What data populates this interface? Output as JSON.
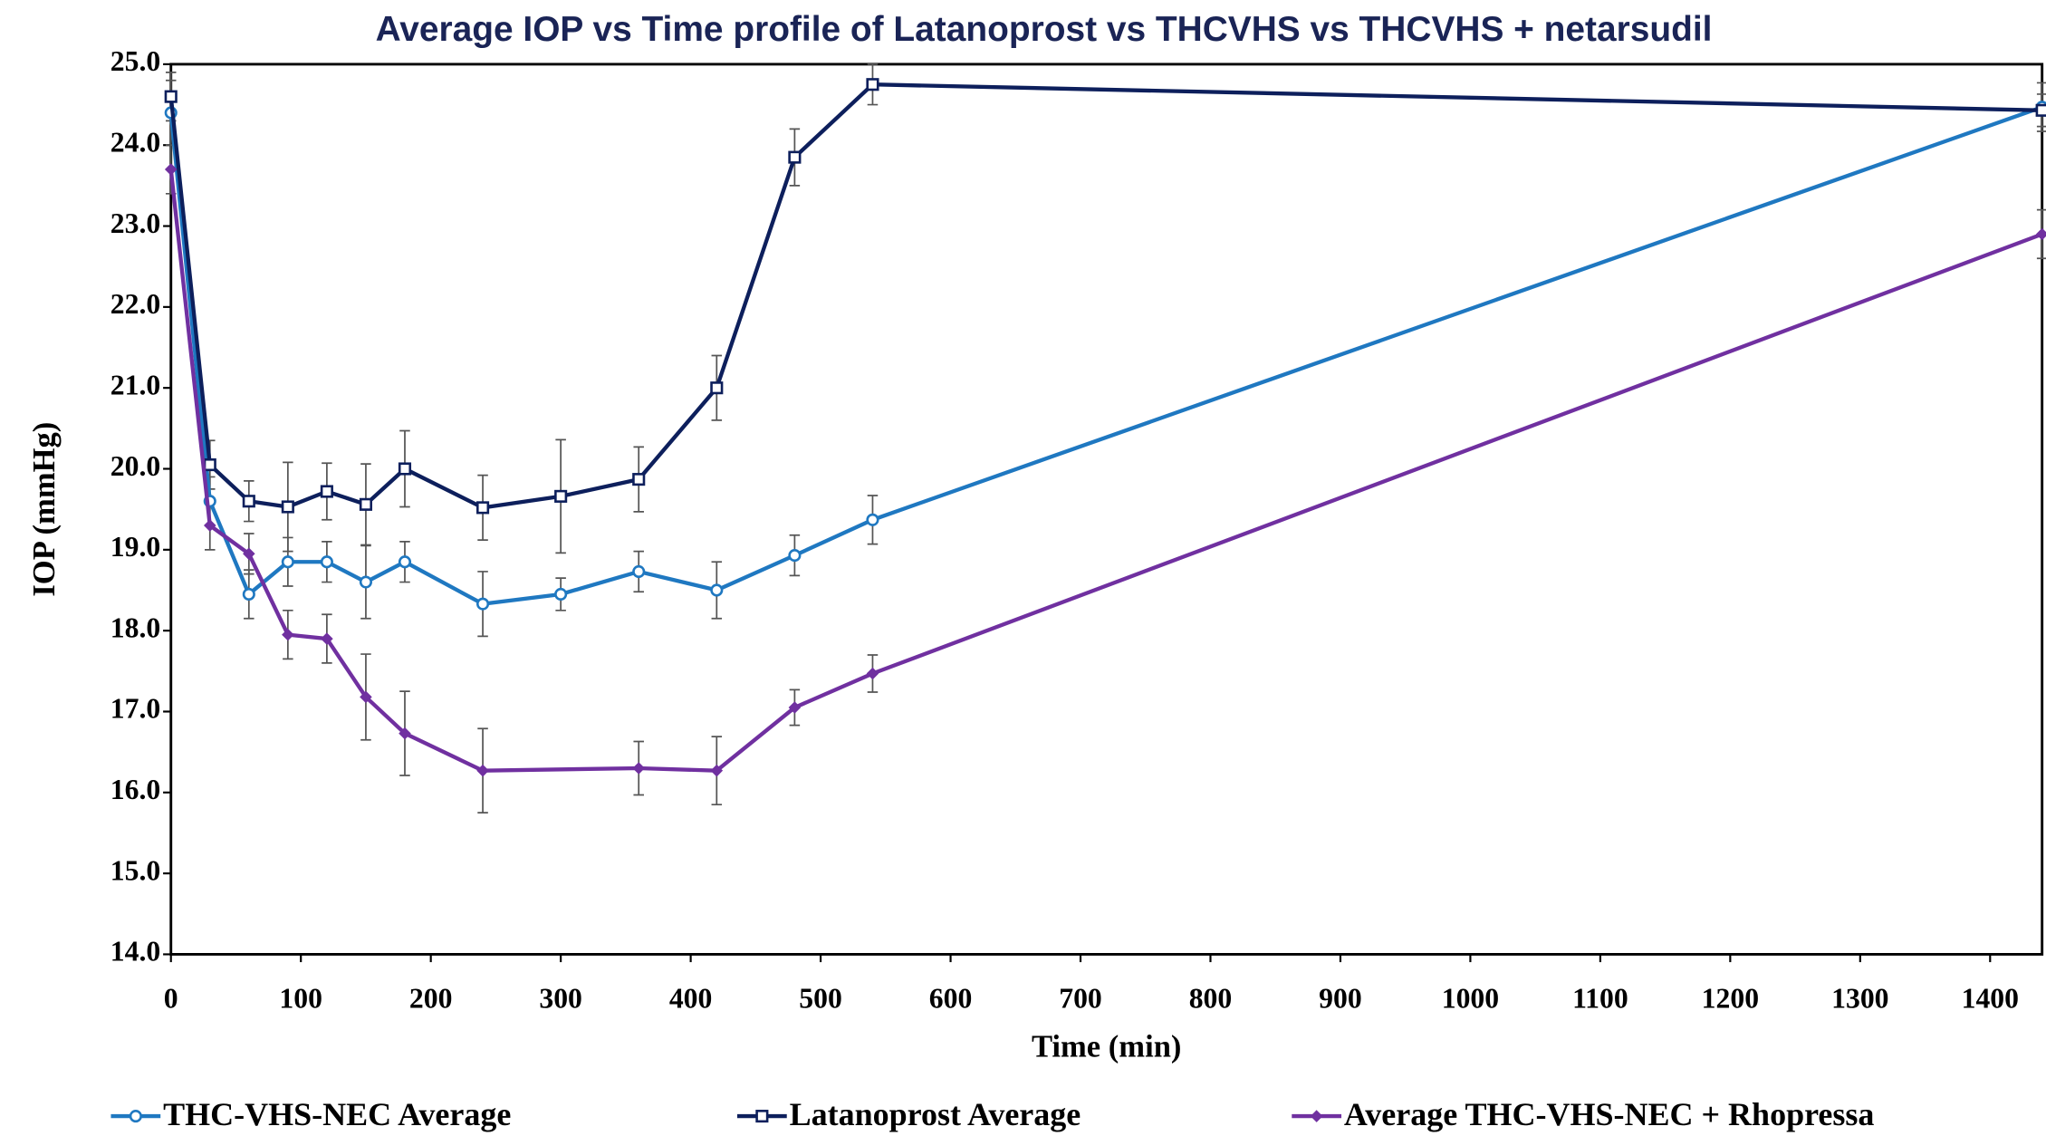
{
  "chart_data": {
    "type": "line",
    "title": "Average IOP vs Time profile of Latanoprost vs  THCVHS vs THCVHS + netarsudil",
    "x_label": "Time (min)",
    "y_label": "IOP (mmHg)",
    "xlim": [
      0,
      1440
    ],
    "xticks": [
      0,
      100,
      200,
      300,
      400,
      500,
      600,
      700,
      800,
      900,
      1000,
      1100,
      1200,
      1300,
      1400
    ],
    "ylim": [
      14,
      25
    ],
    "yticks": [
      {
        "value": 14,
        "label": "14.0"
      },
      {
        "value": 15,
        "label": "15.0"
      },
      {
        "value": 16,
        "label": "16.0"
      },
      {
        "value": 17,
        "label": "17.0"
      },
      {
        "value": 18,
        "label": "18.0"
      },
      {
        "value": 19,
        "label": "19.0"
      },
      {
        "value": 20,
        "label": "20.0"
      },
      {
        "value": 21,
        "label": "21.0"
      },
      {
        "value": 22,
        "label": "22.0"
      },
      {
        "value": 23,
        "label": "23.0"
      },
      {
        "value": 24,
        "label": "24.0"
      },
      {
        "value": 25,
        "label": "25.0"
      }
    ],
    "legend": "bottom",
    "series": [
      {
        "name": "THC-VHS-NEC Average",
        "color": "#1f78c1",
        "marker": "circle",
        "x": [
          0,
          30,
          60,
          90,
          120,
          150,
          180,
          240,
          300,
          360,
          420,
          480,
          540,
          1440
        ],
        "values": [
          24.4,
          19.6,
          18.45,
          18.85,
          18.85,
          18.6,
          18.85,
          18.33,
          18.45,
          18.73,
          18.5,
          18.93,
          19.37,
          24.47
        ],
        "errors": [
          0.4,
          0.3,
          0.3,
          0.3,
          0.25,
          0.45,
          0.25,
          0.4,
          0.2,
          0.25,
          0.35,
          0.25,
          0.3,
          0.3
        ]
      },
      {
        "name": "Latanoprost Average",
        "color": "#0d1f5c",
        "marker": "square",
        "x": [
          0,
          30,
          60,
          90,
          120,
          150,
          180,
          240,
          300,
          360,
          420,
          480,
          540,
          1440
        ],
        "values": [
          24.6,
          20.05,
          19.6,
          19.53,
          19.72,
          19.56,
          20.0,
          19.52,
          19.66,
          19.87,
          21.0,
          23.85,
          24.75,
          24.43
        ],
        "errors": [
          0.3,
          0.3,
          0.25,
          0.55,
          0.35,
          0.5,
          0.47,
          0.4,
          0.7,
          0.4,
          0.4,
          0.35,
          0.25,
          0.2
        ]
      },
      {
        "name": "Average THC-VHS-NEC + Rhopressa",
        "color": "#7030a0",
        "marker": "diamond",
        "x": [
          0,
          30,
          60,
          90,
          120,
          150,
          180,
          240,
          360,
          420,
          480,
          540,
          1440
        ],
        "values": [
          23.7,
          19.3,
          18.95,
          17.95,
          17.9,
          17.18,
          16.73,
          16.27,
          16.3,
          16.27,
          17.05,
          17.47,
          22.9
        ],
        "errors": [
          0.3,
          0.3,
          0.25,
          0.3,
          0.3,
          0.53,
          0.52,
          0.52,
          0.33,
          0.42,
          0.22,
          0.23,
          0.3
        ]
      }
    ]
  }
}
